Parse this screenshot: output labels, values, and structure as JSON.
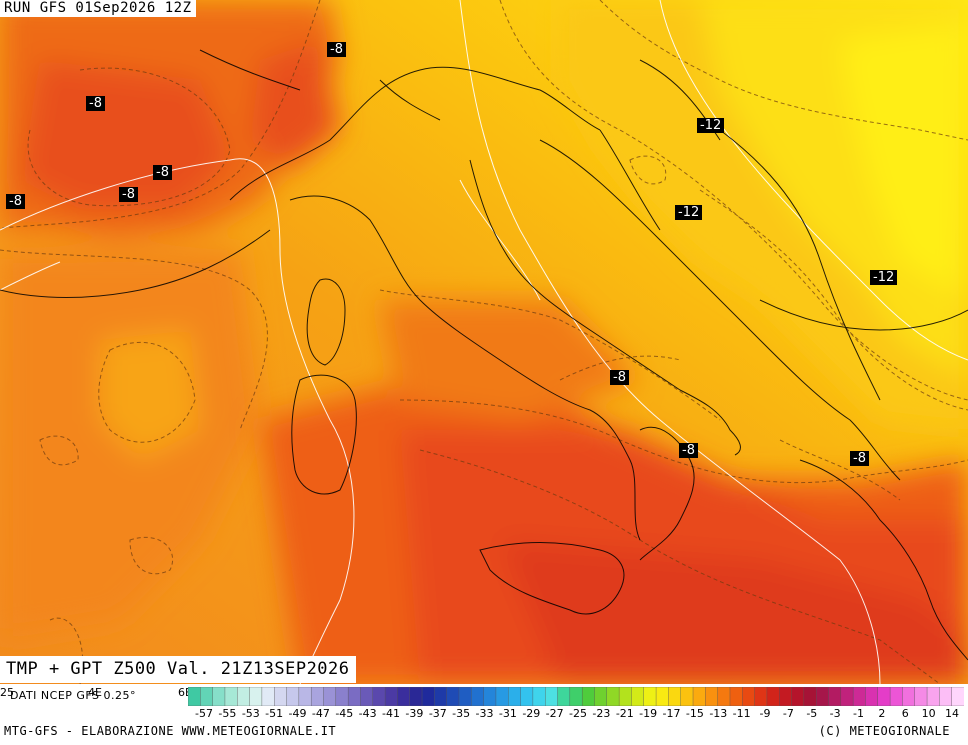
{
  "header": {
    "run": "RUN GFS 01Sep2026 12Z"
  },
  "title": "TMP + GPT Z500 Val. 21Z13SEP2026",
  "source": "DATI NCEP GFS 0.25°",
  "footer": {
    "left": "MTG-GFS - ELABORAZIONE WWW.METEOGIORNALE.IT",
    "right": "(C) METEOGIORNALE"
  },
  "left_ticks": [
    "25",
    "4E",
    "6E"
  ],
  "labels": [
    {
      "text": "-8"
    },
    {
      "text": "-8"
    },
    {
      "text": "-8"
    },
    {
      "text": "-8"
    },
    {
      "text": "-8"
    },
    {
      "text": "-12"
    },
    {
      "text": "-12"
    },
    {
      "text": "-12"
    },
    {
      "text": "-8"
    },
    {
      "text": "-8"
    },
    {
      "text": "-8"
    }
  ],
  "colorbar": {
    "ticks": [
      "-57",
      "-55",
      "-53",
      "-51",
      "-49",
      "-47",
      "-45",
      "-43",
      "-41",
      "-39",
      "-37",
      "-35",
      "-33",
      "-31",
      "-29",
      "-27",
      "-25",
      "-23",
      "-21",
      "-19",
      "-17",
      "-15",
      "-13",
      "-11",
      "-9",
      "-7",
      "-5",
      "-3",
      "-1",
      "2",
      "6",
      "10",
      "14"
    ],
    "colors": [
      "#3fc9a3",
      "#62d4b6",
      "#86dfc9",
      "#a6e8d6",
      "#c2eee3",
      "#d8f2ee",
      "#e1eaf6",
      "#d4d7f0",
      "#c6c8ec",
      "#b9b7e6",
      "#a9a4de",
      "#9a92d6",
      "#8a80cd",
      "#7a6cc3",
      "#6a5ab8",
      "#5a48ad",
      "#4b3aa4",
      "#3a2e9d",
      "#2a2896",
      "#1f2a9c",
      "#1e3aa8",
      "#1f4bb5",
      "#1f5dc2",
      "#2171cf",
      "#2485da",
      "#279ae3",
      "#2bafea",
      "#33c3ee",
      "#3fd4ec",
      "#4de0e2",
      "#3ed69b",
      "#3fcf6a",
      "#4fcc3c",
      "#6fd12f",
      "#90d826",
      "#b3e21d",
      "#d3ea18",
      "#eef015",
      "#f9ea12",
      "#fad810",
      "#fbc20f",
      "#fbaa0f",
      "#f9910f",
      "#f5790f",
      "#ef6010",
      "#e84a12",
      "#df3516",
      "#d2241a",
      "#c41a22",
      "#b5142b",
      "#a61336",
      "#a6164a",
      "#b31b62",
      "#c0227c",
      "#cd2a96",
      "#d932b0",
      "#e43dc8",
      "#ec55d6",
      "#f170de",
      "#f58ae6",
      "#f9a4ee",
      "#fcbef6",
      "#ffd6fc"
    ]
  }
}
